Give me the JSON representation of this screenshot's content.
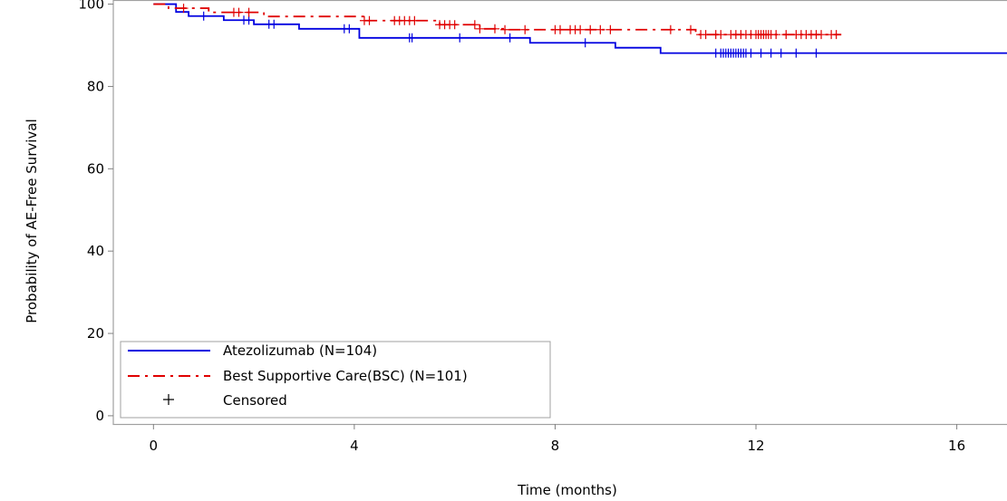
{
  "chart_data": {
    "type": "line",
    "subtype": "kaplan-meier",
    "title": "",
    "xlabel": "Time (months)",
    "ylabel": "Probability of AE-Free Survival",
    "xlim": [
      -0.8,
      17
    ],
    "ylim": [
      -2,
      101
    ],
    "xticks": [
      0,
      4,
      8,
      12,
      16
    ],
    "yticks": [
      0,
      20,
      40,
      60,
      80,
      100
    ],
    "grid": false,
    "legend_position": "bottom-left",
    "series": [
      {
        "name": "Atezolizumab (N=104)",
        "color": "#0000e0",
        "line_style": "solid",
        "steps": [
          [
            0,
            100
          ],
          [
            0.45,
            98.1
          ],
          [
            0.7,
            97.1
          ],
          [
            1.4,
            96.1
          ],
          [
            2.0,
            95.1
          ],
          [
            2.9,
            94.0
          ],
          [
            4.1,
            91.8
          ],
          [
            7.5,
            90.6
          ],
          [
            9.2,
            89.4
          ],
          [
            10.1,
            88.1
          ],
          [
            17.0,
            88.1
          ]
        ],
        "censored": [
          1.0,
          1.8,
          1.9,
          2.3,
          2.4,
          3.8,
          3.9,
          5.1,
          5.15,
          6.1,
          7.1,
          8.6,
          11.2,
          11.3,
          11.35,
          11.4,
          11.45,
          11.5,
          11.55,
          11.6,
          11.65,
          11.7,
          11.75,
          11.8,
          11.9,
          12.1,
          12.3,
          12.5,
          12.8,
          13.2
        ]
      },
      {
        "name": "Best Supportive Care(BSC) (N=101)",
        "color": "#e00000",
        "line_style": "dash-dot",
        "steps": [
          [
            0,
            100
          ],
          [
            0.3,
            99.0
          ],
          [
            1.1,
            98.0
          ],
          [
            2.2,
            97.0
          ],
          [
            4.2,
            96.0
          ],
          [
            5.7,
            95.0
          ],
          [
            6.5,
            94.0
          ],
          [
            7.0,
            93.8
          ],
          [
            10.8,
            92.6
          ],
          [
            13.7,
            92.6
          ]
        ],
        "censored": [
          0.6,
          1.6,
          1.7,
          1.9,
          4.2,
          4.3,
          4.8,
          4.9,
          5.0,
          5.1,
          5.2,
          5.7,
          5.8,
          5.9,
          6.0,
          6.4,
          6.5,
          6.8,
          7.0,
          7.4,
          8.0,
          8.1,
          8.3,
          8.4,
          8.5,
          8.7,
          8.9,
          9.1,
          10.3,
          10.7,
          10.9,
          11.0,
          11.2,
          11.3,
          11.5,
          11.6,
          11.7,
          11.8,
          11.9,
          12.0,
          12.05,
          12.1,
          12.15,
          12.2,
          12.25,
          12.3,
          12.4,
          12.6,
          12.8,
          12.9,
          13.0,
          13.1,
          13.2,
          13.3,
          13.5,
          13.6
        ]
      }
    ],
    "legend": [
      {
        "label": "Atezolizumab (N=104)",
        "color": "#0000e0",
        "style": "solid"
      },
      {
        "label": "Best Supportive Care(BSC) (N=101)",
        "color": "#e00000",
        "style": "dash-dot"
      },
      {
        "label": "Censored",
        "color": "#000000",
        "style": "plus"
      }
    ]
  }
}
